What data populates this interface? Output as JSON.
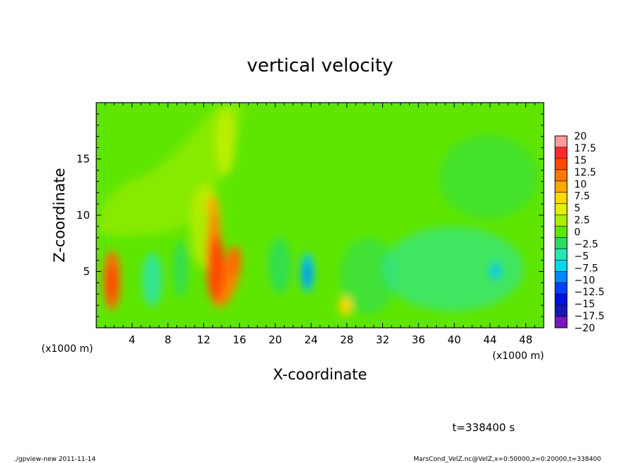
{
  "chart_data": {
    "type": "heatmap",
    "title": "vertical velocity",
    "xlabel": "X-coordinate",
    "ylabel": "Z-coordinate",
    "x_unit_note": "(x1000 m)",
    "y_unit_note": "(x1000 m)",
    "xlim": [
      0,
      50
    ],
    "ylim": [
      0,
      20
    ],
    "x_ticks": [
      4,
      8,
      12,
      16,
      20,
      24,
      28,
      32,
      36,
      40,
      44,
      48
    ],
    "x_tick_labels": [
      "4",
      "8",
      "12",
      "16",
      "20",
      "24",
      "28",
      "32",
      "36",
      "40",
      "44",
      "48"
    ],
    "y_ticks": [
      5,
      10,
      15
    ],
    "y_tick_labels": [
      "5",
      "10",
      "15"
    ],
    "colorbar": {
      "levels": [
        20,
        17.5,
        15,
        12.5,
        10,
        7.5,
        5,
        2.5,
        0,
        -2.5,
        -5,
        -7.5,
        -10,
        -12.5,
        -15,
        -17.5,
        -20
      ],
      "labels": [
        "20",
        "17.5",
        "15",
        "12.5",
        "10",
        "7.5",
        "5",
        "2.5",
        "0",
        "−2.5",
        "−5",
        "−7.5",
        "−10",
        "−12.5",
        "−15",
        "−17.5",
        "−20"
      ],
      "colors": [
        "#ff9a9a",
        "#ff2a2a",
        "#ff4a00",
        "#ff7800",
        "#ffa800",
        "#ffd800",
        "#e0f000",
        "#a8ee00",
        "#5fe600",
        "#28dc60",
        "#28e6b0",
        "#00d8f0",
        "#0088ff",
        "#0040ff",
        "#0010e0",
        "#1818b0",
        "#7a18c0"
      ]
    },
    "features": [
      {
        "x": 2.3,
        "z": 4.5,
        "value": 12.5
      },
      {
        "x": 12.8,
        "z": 6.5,
        "value": 12.5
      },
      {
        "x": 15.0,
        "z": 5.8,
        "value": 10
      },
      {
        "x": 23.5,
        "z": 5.0,
        "value": -8
      },
      {
        "x": 28.0,
        "z": 2.0,
        "value": 7.5
      },
      {
        "x": 44.5,
        "z": 5.0,
        "value": -8
      }
    ],
    "background_value": 0
  },
  "annotations": {
    "time": "t=338400 s",
    "footer_left": "./gpview-new  2011-11-14",
    "footer_right": "MarsCond_VelZ.nc@VelZ,x=0:50000,z=0:20000,t=338400"
  }
}
